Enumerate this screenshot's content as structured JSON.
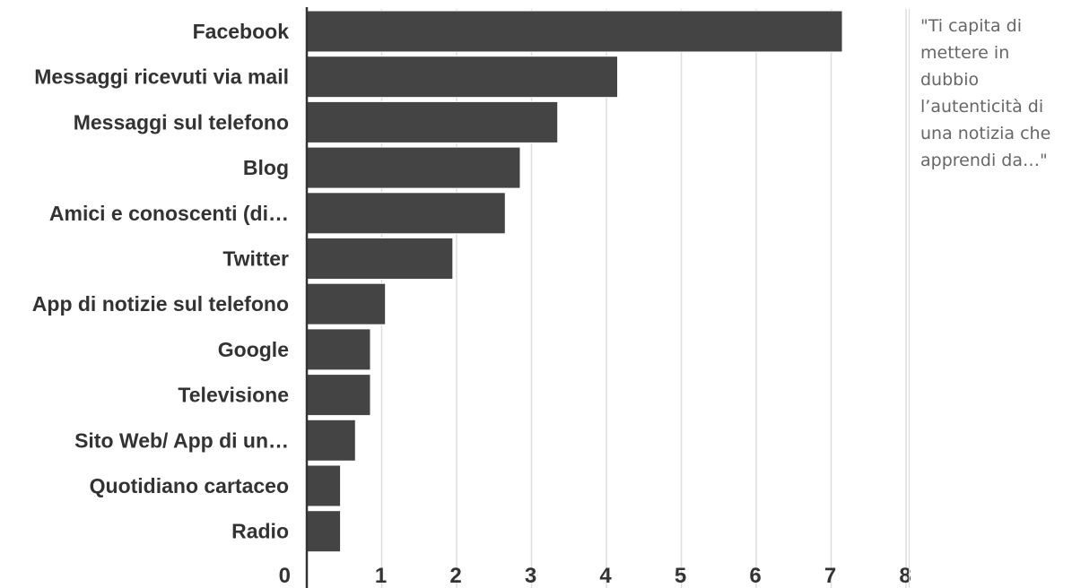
{
  "chart_data": {
    "type": "bar",
    "orientation": "horizontal",
    "categories": [
      "Facebook",
      "Messaggi ricevuti via mail",
      "Messaggi sul telefono",
      "Blog",
      "Amici e conoscenti (di…",
      "Twitter",
      "App di notizie sul telefono",
      "Google",
      "Televisione",
      "Sito Web/ App di un…",
      "Quotidiano cartaceo",
      "Radio"
    ],
    "values": [
      7.15,
      4.15,
      3.35,
      2.85,
      2.65,
      1.95,
      1.05,
      0.85,
      0.85,
      0.65,
      0.45,
      0.45
    ],
    "xlim": [
      0,
      8
    ],
    "xticks": [
      "0",
      "1",
      "2",
      "3",
      "4",
      "5",
      "6",
      "7",
      "8"
    ],
    "grid": true,
    "bar_color": "#444444",
    "grid_color": "#dddddd",
    "title": "",
    "xlabel": "",
    "ylabel": ""
  },
  "annotation": {
    "text": "\"Ti capita di\nmettere in\ndubbio\nl’autenticità di\nuna notizia che\napprendi da…\""
  }
}
